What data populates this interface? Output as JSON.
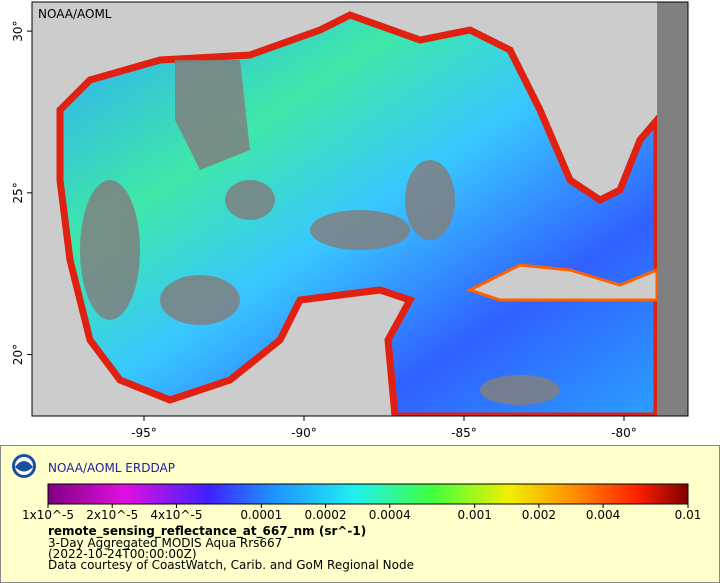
{
  "map": {
    "watermark": "NOAA/AOML",
    "xlim": [
      -98.5,
      -78
    ],
    "ylim": [
      18.1,
      30.9
    ],
    "xticks": [
      {
        "value": -95,
        "label": "-95°"
      },
      {
        "value": -90,
        "label": "-90°"
      },
      {
        "value": -85,
        "label": "-85°"
      },
      {
        "value": -80,
        "label": "-80°"
      }
    ],
    "yticks": [
      {
        "value": 20,
        "label": "20°"
      },
      {
        "value": 25,
        "label": "25°"
      },
      {
        "value": 30,
        "label": "30°"
      }
    ]
  },
  "legend": {
    "title": "NOAA/AOML ERDDAP",
    "colorbar": {
      "log_scale": true,
      "lim": [
        1e-05,
        0.01
      ],
      "ticks": [
        {
          "value": 1e-05,
          "label": "1x10^-5"
        },
        {
          "value": 2e-05,
          "label": "2x10^-5"
        },
        {
          "value": 4e-05,
          "label": "4x10^-5"
        },
        0.0001,
        0.0002,
        0.0004,
        0.001,
        0.002,
        0.004,
        0.01
      ]
    },
    "variable": "remote_sensing_reflectance_at_667_nm (sr^-1)",
    "lines": [
      "3-Day Aggregated MODIS Aqua Rrs667",
      "(2022-10-24T00:00:00Z)",
      "Data courtesy of CoastWatch, Carib. and GoM Regional Node"
    ]
  }
}
